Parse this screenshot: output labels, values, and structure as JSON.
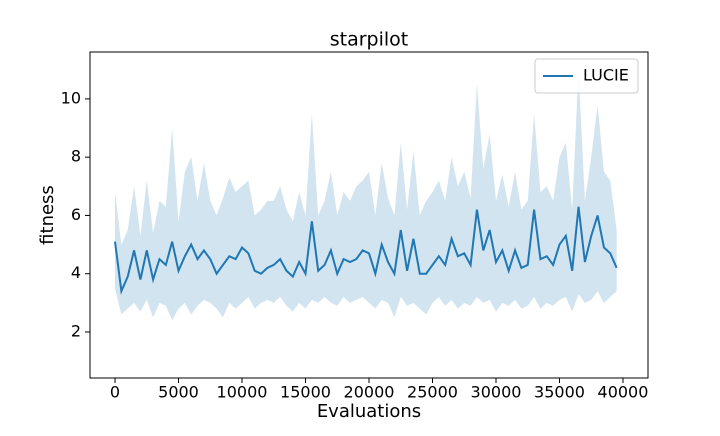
{
  "chart_data": {
    "type": "line",
    "title": "starpilot",
    "x_label": "Evaluations",
    "y_label": "fitness",
    "x": [
      0,
      500,
      1000,
      1500,
      2000,
      2500,
      3000,
      3500,
      4000,
      4500,
      5000,
      5500,
      6000,
      6500,
      7000,
      7500,
      8000,
      8500,
      9000,
      9500,
      10000,
      10500,
      11000,
      11500,
      12000,
      12500,
      13000,
      13500,
      14000,
      14500,
      15000,
      15500,
      16000,
      16500,
      17000,
      17500,
      18000,
      18500,
      19000,
      19500,
      20000,
      20500,
      21000,
      21500,
      22000,
      22500,
      23000,
      23500,
      24000,
      24500,
      25000,
      25500,
      26000,
      26500,
      27000,
      27500,
      28000,
      28500,
      29000,
      29500,
      30000,
      30500,
      31000,
      31500,
      32000,
      32500,
      33000,
      33500,
      34000,
      34500,
      35000,
      35500,
      36000,
      36500,
      37000,
      37500,
      38000,
      38500,
      39000,
      39500
    ],
    "series": [
      {
        "name": "LUCIE",
        "color": "#1f77b4",
        "band_color": "#1f77b4",
        "values": [
          5.1,
          3.4,
          3.9,
          4.8,
          3.8,
          4.8,
          3.8,
          4.5,
          4.3,
          5.1,
          4.1,
          4.6,
          5.0,
          4.5,
          4.8,
          4.5,
          4.0,
          4.3,
          4.6,
          4.5,
          4.9,
          4.7,
          4.1,
          4.0,
          4.2,
          4.3,
          4.5,
          4.1,
          3.9,
          4.4,
          4.0,
          5.8,
          4.1,
          4.3,
          4.8,
          4.0,
          4.5,
          4.4,
          4.5,
          4.8,
          4.7,
          4.0,
          5.0,
          4.4,
          4.0,
          5.5,
          4.1,
          5.2,
          4.0,
          4.0,
          4.3,
          4.6,
          4.3,
          5.2,
          4.6,
          4.7,
          4.3,
          6.2,
          4.8,
          5.5,
          4.4,
          4.8,
          4.1,
          4.8,
          4.2,
          4.3,
          6.2,
          4.5,
          4.6,
          4.3,
          5.0,
          5.3,
          4.1,
          6.3,
          4.4,
          5.3,
          6.0,
          4.9,
          4.7,
          4.2
        ],
        "lower": [
          3.5,
          2.6,
          2.8,
          3.0,
          2.7,
          3.1,
          2.5,
          3.0,
          2.9,
          2.4,
          2.8,
          3.0,
          2.6,
          2.9,
          3.1,
          3.0,
          2.8,
          2.5,
          3.0,
          2.8,
          3.0,
          3.2,
          2.8,
          3.0,
          3.1,
          3.0,
          3.2,
          2.9,
          2.7,
          3.0,
          2.8,
          3.1,
          3.0,
          3.2,
          3.0,
          2.9,
          3.2,
          3.0,
          3.1,
          3.2,
          3.0,
          2.8,
          3.1,
          3.0,
          2.5,
          3.2,
          2.9,
          3.0,
          2.8,
          2.6,
          3.0,
          3.2,
          2.9,
          3.1,
          2.8,
          3.0,
          2.9,
          3.2,
          3.0,
          3.1,
          2.7,
          3.0,
          2.9,
          3.1,
          2.8,
          2.9,
          3.2,
          2.8,
          3.0,
          2.9,
          3.1,
          3.2,
          2.7,
          3.3,
          3.0,
          3.1,
          3.4,
          3.0,
          3.2,
          3.4
        ],
        "upper": [
          6.8,
          5.0,
          5.5,
          7.0,
          5.3,
          7.2,
          5.4,
          6.5,
          6.3,
          9.0,
          5.8,
          7.5,
          8.0,
          6.5,
          7.8,
          6.5,
          6.0,
          6.6,
          7.3,
          6.8,
          7.0,
          7.2,
          6.0,
          6.2,
          6.5,
          6.5,
          7.0,
          6.2,
          5.8,
          6.8,
          6.0,
          9.5,
          6.0,
          6.5,
          7.5,
          6.0,
          6.8,
          6.5,
          7.0,
          7.2,
          7.5,
          6.0,
          7.8,
          6.6,
          6.0,
          8.5,
          6.2,
          8.2,
          6.0,
          6.5,
          6.8,
          7.2,
          6.5,
          8.0,
          7.0,
          7.5,
          6.6,
          10.5,
          7.6,
          8.8,
          6.5,
          7.4,
          6.3,
          7.5,
          6.2,
          6.5,
          9.5,
          6.8,
          7.0,
          6.5,
          8.0,
          8.5,
          6.2,
          11.0,
          6.5,
          8.0,
          9.8,
          7.5,
          7.2,
          5.5
        ]
      }
    ],
    "xlim": [
      -1970,
      41970
    ],
    "ylim": [
      0.42,
      11.61
    ],
    "xticks": [
      0,
      5000,
      10000,
      15000,
      20000,
      25000,
      30000,
      35000,
      40000
    ],
    "yticks": [
      2,
      4,
      6,
      8,
      10
    ],
    "legend": "upper right"
  }
}
